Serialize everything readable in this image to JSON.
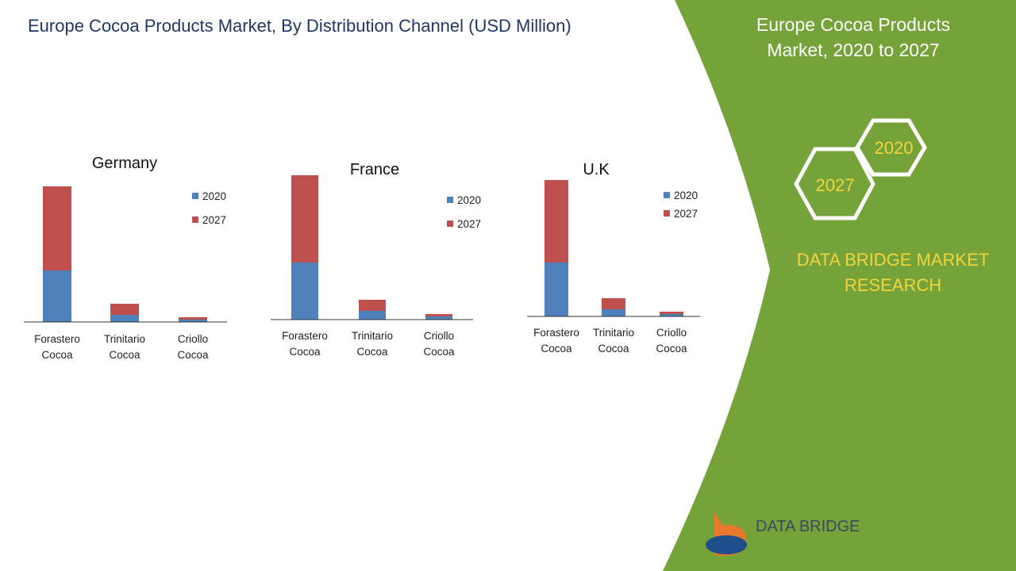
{
  "page": {
    "title": "Europe Cocoa Products Market, By Distribution Channel (USD Million)",
    "side_title": "Europe Cocoa Products Market, 2020 to 2027",
    "hex_a": "2020",
    "hex_b": "2027",
    "brand": "DATA BRIDGE MARKET RESEARCH",
    "logo": "DATA BRIDGE"
  },
  "chart_data": [
    {
      "type": "stacked-bar",
      "title": "Germany",
      "categories": [
        "Forastero Cocoa",
        "Trinitario Cocoa",
        "Criollo Cocoa"
      ],
      "series": [
        {
          "name": "2020",
          "color": "#4f81bd",
          "values": [
            65,
            9,
            3
          ]
        },
        {
          "name": "2027",
          "color": "#c0504d",
          "values": [
            106,
            14,
            3
          ]
        }
      ]
    },
    {
      "type": "stacked-bar",
      "title": "France",
      "categories": [
        "Forastero Cocoa",
        "Trinitario Cocoa",
        "Criollo Cocoa"
      ],
      "series": [
        {
          "name": "2020",
          "color": "#4f81bd",
          "values": [
            72,
            11,
            4
          ]
        },
        {
          "name": "2027",
          "color": "#c0504d",
          "values": [
            110,
            14,
            3
          ]
        }
      ]
    },
    {
      "type": "stacked-bar",
      "title": "U.K",
      "categories": [
        "Forastero Cocoa",
        "Trinitario Cocoa",
        "Criollo Cocoa"
      ],
      "series": [
        {
          "name": "2020",
          "color": "#4f81bd",
          "values": [
            68,
            9,
            3
          ]
        },
        {
          "name": "2027",
          "color": "#c0504d",
          "values": [
            104,
            14,
            3
          ]
        }
      ]
    }
  ]
}
